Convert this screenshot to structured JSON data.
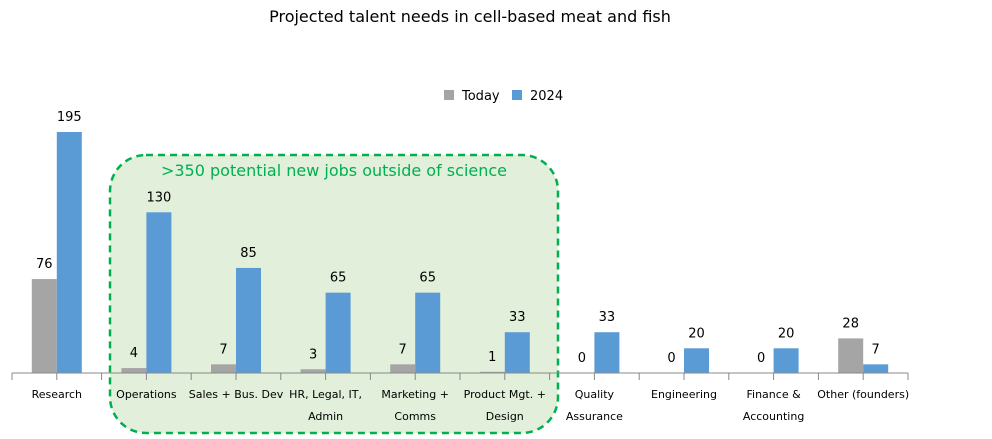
{
  "chart_data": {
    "type": "bar",
    "title": "Projected talent needs in cell-based meat and fish",
    "annotation": ">350 potential new jobs outside of science",
    "categories": [
      [
        "Research"
      ],
      [
        "Operations"
      ],
      [
        "Sales + Bus. Dev"
      ],
      [
        "HR, Legal, IT,",
        "Admin"
      ],
      [
        "Marketing +",
        "Comms"
      ],
      [
        "Product Mgt. +",
        "Design"
      ],
      [
        "Quality",
        "Assurance"
      ],
      [
        "Engineering"
      ],
      [
        "Finance &",
        "Accounting"
      ],
      [
        "Other (founders)"
      ]
    ],
    "series": [
      {
        "name": "Today",
        "color": "#a5a5a5",
        "values": [
          76,
          4,
          7,
          3,
          7,
          1,
          0,
          0,
          0,
          28
        ]
      },
      {
        "name": "2024",
        "color": "#5b9bd5",
        "values": [
          195,
          130,
          85,
          65,
          65,
          33,
          33,
          20,
          20,
          7
        ]
      }
    ],
    "highlight_categories": [
      1,
      5
    ],
    "highlight_color": "#00b050",
    "highlight_fill": "#e2efda",
    "legend_position": "top-center",
    "xlabel": "",
    "ylabel": "",
    "ylim": [
      0,
      200
    ],
    "grid": false
  }
}
